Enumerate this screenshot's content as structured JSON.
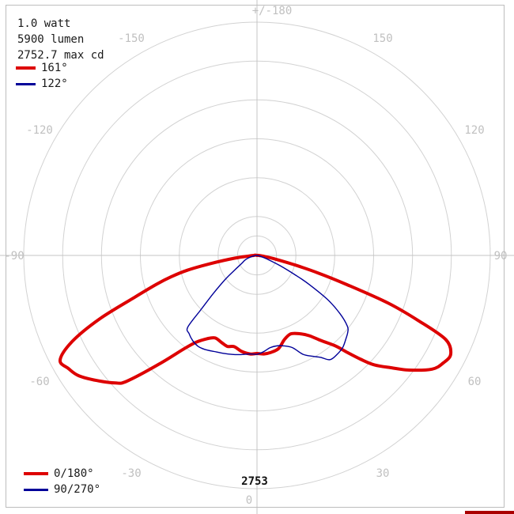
{
  "colors": {
    "background": "#ffffff",
    "frame_border": "#bdbdbd",
    "grid_ring": "#d2d2d2",
    "axis_line": "#c4c4c4",
    "angle_label": "#c0c0c0",
    "info_text": "#1a1a1a",
    "scale_label": "#111111",
    "c0_plane": "#dd0000",
    "c90_plane": "#000099",
    "corner_mark": "#aa0000"
  },
  "info": {
    "watt": "1.0 watt",
    "lumen": "5900 lumen",
    "max_cd": "2752.7 max cd"
  },
  "beam_legend": [
    {
      "label": "161°",
      "color": "#dd0000"
    },
    {
      "label": "122°",
      "color": "#000099"
    }
  ],
  "plane_legend": [
    {
      "label": "0/180°",
      "color": "#dd0000"
    },
    {
      "label": "90/270°",
      "color": "#000099"
    }
  ],
  "chart_data": {
    "type": "polar",
    "title": "Luminous intensity distribution (polar photometric diagram)",
    "units": "cd",
    "max_cd": 2753,
    "outer_ring_label": "2753",
    "zero_angle_label": "0",
    "ring_fractions": [
      0.0833,
      0.1667,
      0.3333,
      0.5,
      0.6667,
      0.8333,
      1.0
    ],
    "angle_labels": [
      {
        "angle": 180,
        "text": "+/-180"
      },
      {
        "angle": -150,
        "text": "-150"
      },
      {
        "angle": 150,
        "text": "150"
      },
      {
        "angle": -120,
        "text": "-120"
      },
      {
        "angle": 120,
        "text": "120"
      },
      {
        "angle": -90,
        "text": "-90"
      },
      {
        "angle": 90,
        "text": "90"
      },
      {
        "angle": -60,
        "text": "-60"
      },
      {
        "angle": 60,
        "text": "60"
      },
      {
        "angle": -30,
        "text": "-30"
      },
      {
        "angle": 30,
        "text": "30"
      },
      {
        "angle": 0,
        "text": "0"
      }
    ],
    "series": [
      {
        "name": "0/180°",
        "color": "#dd0000",
        "width": 4,
        "points": [
          [
            -180,
            0
          ],
          [
            -150,
            0
          ],
          [
            -120,
            0
          ],
          [
            -105,
            0
          ],
          [
            -100,
            19
          ],
          [
            -95,
            28
          ],
          [
            -90,
            37
          ],
          [
            -86,
            93
          ],
          [
            -83,
            261
          ],
          [
            -80,
            560
          ],
          [
            -78,
            840
          ],
          [
            -76,
            1045
          ],
          [
            -74,
            1232
          ],
          [
            -71,
            1540
          ],
          [
            -68,
            2006
          ],
          [
            -65,
            2408
          ],
          [
            -62,
            2632
          ],
          [
            -59,
            2594
          ],
          [
            -56,
            2538
          ],
          [
            -52,
            2398
          ],
          [
            -48,
            2249
          ],
          [
            -46,
            2137
          ],
          [
            -42,
            1726
          ],
          [
            -38,
            1400
          ],
          [
            -35,
            1250
          ],
          [
            -31,
            1148
          ],
          [
            -27,
            1092
          ],
          [
            -22,
            1110
          ],
          [
            -18,
            1129
          ],
          [
            -14,
            1110
          ],
          [
            -9,
            1148
          ],
          [
            -4,
            1166
          ],
          [
            0,
            1157
          ],
          [
            4,
            1166
          ],
          [
            8,
            1157
          ],
          [
            13,
            1129
          ],
          [
            18,
            1045
          ],
          [
            23,
            1008
          ],
          [
            28,
            1045
          ],
          [
            33,
            1129
          ],
          [
            37,
            1260
          ],
          [
            41,
            1418
          ],
          [
            43,
            1568
          ],
          [
            45,
            1736
          ],
          [
            47,
            1894
          ],
          [
            50,
            2062
          ],
          [
            53,
            2249
          ],
          [
            57,
            2464
          ],
          [
            60,
            2538
          ],
          [
            63,
            2566
          ],
          [
            66,
            2436
          ],
          [
            68,
            2053
          ],
          [
            70,
            1652
          ],
          [
            72,
            1120
          ],
          [
            74,
            747
          ],
          [
            76,
            448
          ],
          [
            79,
            205
          ],
          [
            83,
            75
          ],
          [
            88,
            28
          ],
          [
            95,
            9
          ],
          [
            105,
            0
          ],
          [
            120,
            0
          ],
          [
            150,
            0
          ],
          [
            180,
            0
          ]
        ]
      },
      {
        "name": "90/270°",
        "color": "#000099",
        "width": 1.4,
        "points": [
          [
            -180,
            0
          ],
          [
            -120,
            0
          ],
          [
            -90,
            0
          ],
          [
            -80,
            47
          ],
          [
            -73,
            112
          ],
          [
            -68,
            159
          ],
          [
            -63,
            196
          ],
          [
            -57,
            308
          ],
          [
            -53,
            467
          ],
          [
            -49,
            681
          ],
          [
            -46,
            914
          ],
          [
            -44,
            1176
          ],
          [
            -41,
            1222
          ],
          [
            -37,
            1260
          ],
          [
            -33,
            1278
          ],
          [
            -29,
            1269
          ],
          [
            -24,
            1241
          ],
          [
            -19,
            1222
          ],
          [
            -14,
            1204
          ],
          [
            -9,
            1185
          ],
          [
            -4,
            1166
          ],
          [
            0,
            1166
          ],
          [
            4,
            1138
          ],
          [
            8,
            1101
          ],
          [
            12,
            1092
          ],
          [
            16,
            1110
          ],
          [
            21,
            1166
          ],
          [
            25,
            1288
          ],
          [
            29,
            1362
          ],
          [
            32,
            1418
          ],
          [
            35,
            1502
          ],
          [
            39,
            1502
          ],
          [
            43,
            1484
          ],
          [
            47,
            1437
          ],
          [
            50,
            1400
          ],
          [
            52,
            1353
          ],
          [
            55,
            1194
          ],
          [
            58,
            980
          ],
          [
            61,
            700
          ],
          [
            63,
            504
          ],
          [
            66,
            299
          ],
          [
            70,
            131
          ],
          [
            75,
            47
          ],
          [
            82,
            0
          ],
          [
            120,
            0
          ],
          [
            180,
            0
          ]
        ]
      }
    ]
  }
}
